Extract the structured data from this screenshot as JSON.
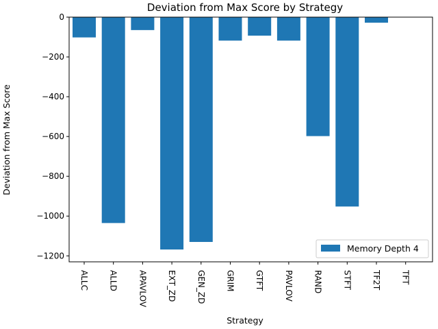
{
  "chart_data": {
    "type": "bar",
    "title": "Deviation from Max Score by Strategy",
    "xlabel": "Strategy",
    "ylabel": "Deviation from Max Score",
    "categories": [
      "ALLC",
      "ALLD",
      "APAVLOV",
      "EXT_ZD",
      "GEN_ZD",
      "GRIM",
      "GTFT",
      "PAVLOV",
      "RAND",
      "STFT",
      "TF2T",
      "TFT"
    ],
    "series": [
      {
        "name": "Memory Depth 4",
        "color": "#1f77b4",
        "values": [
          -102,
          -1035,
          -65,
          -1168,
          -1130,
          -118,
          -93,
          -118,
          -598,
          -952,
          -28,
          0
        ]
      }
    ],
    "ylim": [
      -1230,
      0
    ],
    "yticks": [
      0,
      -200,
      -400,
      -600,
      -800,
      -1000,
      -1200
    ],
    "ytick_labels": [
      "0",
      "−200",
      "−400",
      "−600",
      "−800",
      "−1000",
      "−1200"
    ],
    "xtick_rotation": "vertical",
    "grid": false,
    "legend_position": "lower-right"
  }
}
